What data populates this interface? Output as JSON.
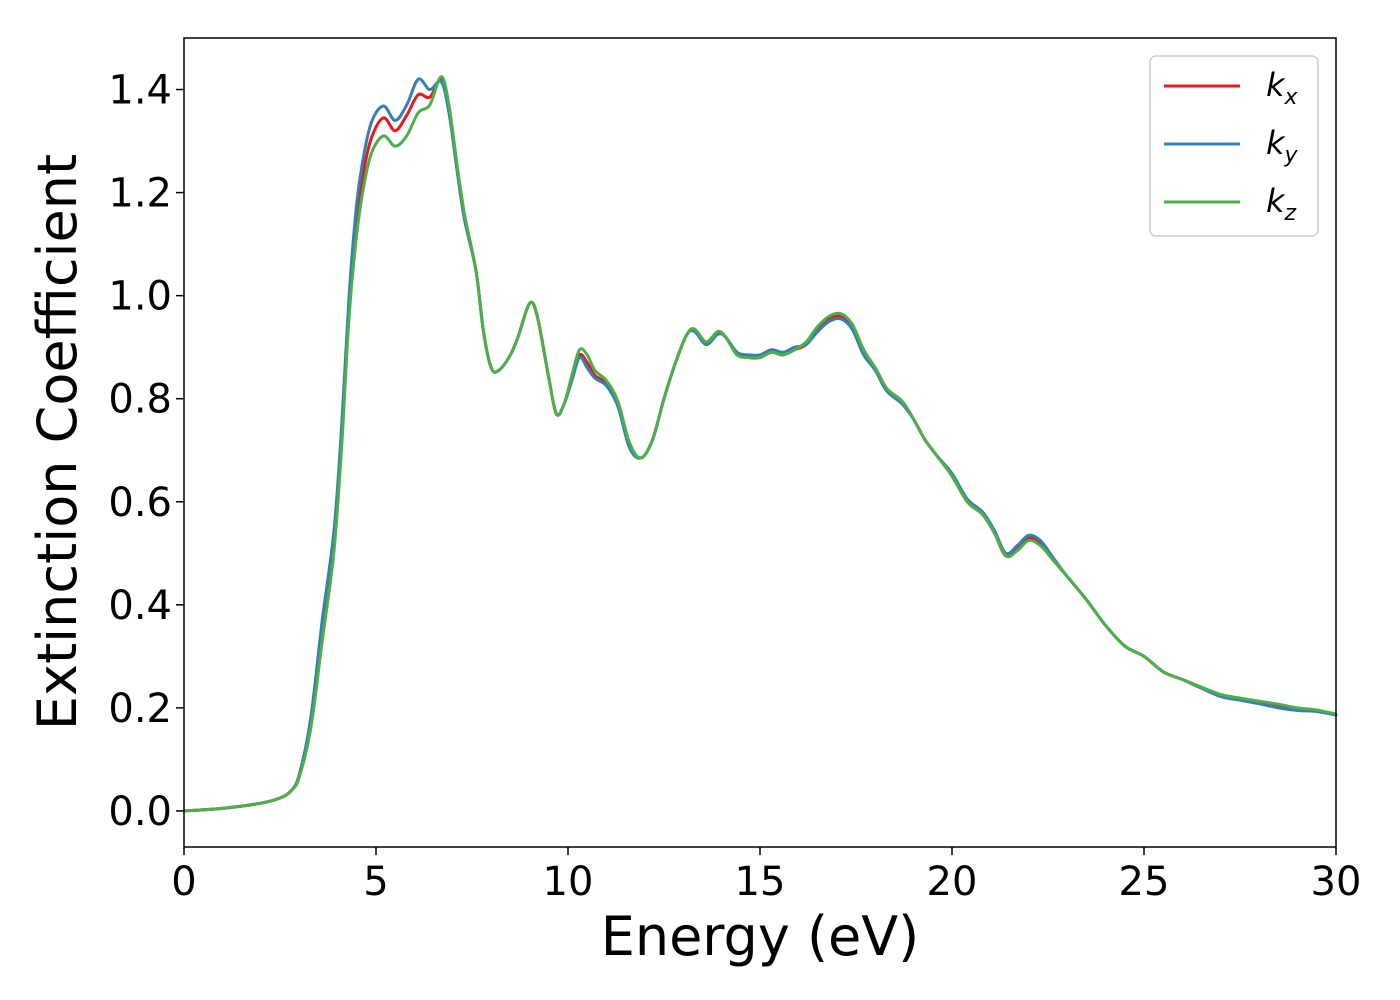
{
  "chart_data": {
    "type": "line",
    "title": "",
    "xlabel": "Energy (eV)",
    "ylabel": "Extinction Coefficient",
    "xlim": [
      0,
      30
    ],
    "ylim": [
      -0.07,
      1.5
    ],
    "xticks": [
      0,
      5,
      10,
      15,
      20,
      25,
      30
    ],
    "xtick_labels": [
      "0",
      "5",
      "10",
      "15",
      "20",
      "25",
      "30"
    ],
    "yticks": [
      0.0,
      0.2,
      0.4,
      0.6,
      0.8,
      1.0,
      1.2,
      1.4
    ],
    "ytick_labels": [
      "0.0",
      "0.2",
      "0.4",
      "0.6",
      "0.8",
      "1.0",
      "1.2",
      "1.4"
    ],
    "grid": false,
    "legend_position": "top-right",
    "series": [
      {
        "name": "k_x",
        "label_base": "k",
        "label_sub": "x",
        "color": "#e41a1c",
        "points": [
          [
            0,
            0
          ],
          [
            1,
            0.005
          ],
          [
            2,
            0.015
          ],
          [
            2.5,
            0.025
          ],
          [
            2.8,
            0.04
          ],
          [
            3.0,
            0.07
          ],
          [
            3.3,
            0.17
          ],
          [
            3.6,
            0.35
          ],
          [
            3.9,
            0.52
          ],
          [
            4.1,
            0.72
          ],
          [
            4.3,
            0.98
          ],
          [
            4.5,
            1.15
          ],
          [
            4.7,
            1.25
          ],
          [
            4.9,
            1.31
          ],
          [
            5.2,
            1.345
          ],
          [
            5.5,
            1.32
          ],
          [
            5.8,
            1.35
          ],
          [
            6.1,
            1.39
          ],
          [
            6.4,
            1.385
          ],
          [
            6.7,
            1.42
          ],
          [
            6.9,
            1.36
          ],
          [
            7.1,
            1.25
          ],
          [
            7.3,
            1.15
          ],
          [
            7.6,
            1.05
          ],
          [
            7.8,
            0.93
          ],
          [
            8.0,
            0.86
          ],
          [
            8.2,
            0.855
          ],
          [
            8.5,
            0.885
          ],
          [
            8.7,
            0.92
          ],
          [
            9.0,
            0.985
          ],
          [
            9.2,
            0.96
          ],
          [
            9.5,
            0.84
          ],
          [
            9.7,
            0.77
          ],
          [
            9.9,
            0.79
          ],
          [
            10.1,
            0.84
          ],
          [
            10.3,
            0.885
          ],
          [
            10.5,
            0.87
          ],
          [
            10.7,
            0.845
          ],
          [
            11.0,
            0.83
          ],
          [
            11.3,
            0.79
          ],
          [
            11.6,
            0.71
          ],
          [
            11.9,
            0.685
          ],
          [
            12.2,
            0.72
          ],
          [
            12.5,
            0.8
          ],
          [
            12.8,
            0.87
          ],
          [
            13.1,
            0.925
          ],
          [
            13.3,
            0.93
          ],
          [
            13.6,
            0.91
          ],
          [
            13.9,
            0.93
          ],
          [
            14.1,
            0.92
          ],
          [
            14.4,
            0.89
          ],
          [
            14.7,
            0.88
          ],
          [
            15.0,
            0.88
          ],
          [
            15.3,
            0.89
          ],
          [
            15.6,
            0.885
          ],
          [
            15.9,
            0.895
          ],
          [
            16.2,
            0.905
          ],
          [
            16.5,
            0.935
          ],
          [
            16.8,
            0.955
          ],
          [
            17.1,
            0.96
          ],
          [
            17.4,
            0.94
          ],
          [
            17.7,
            0.89
          ],
          [
            18.0,
            0.86
          ],
          [
            18.3,
            0.82
          ],
          [
            18.7,
            0.795
          ],
          [
            19.0,
            0.76
          ],
          [
            19.3,
            0.72
          ],
          [
            19.6,
            0.69
          ],
          [
            20.0,
            0.65
          ],
          [
            20.4,
            0.6
          ],
          [
            20.8,
            0.575
          ],
          [
            21.1,
            0.54
          ],
          [
            21.4,
            0.495
          ],
          [
            21.7,
            0.51
          ],
          [
            22.0,
            0.53
          ],
          [
            22.3,
            0.52
          ],
          [
            22.6,
            0.49
          ],
          [
            23.0,
            0.455
          ],
          [
            23.5,
            0.41
          ],
          [
            24.0,
            0.36
          ],
          [
            24.5,
            0.32
          ],
          [
            25.0,
            0.3
          ],
          [
            25.5,
            0.27
          ],
          [
            26.0,
            0.255
          ],
          [
            26.5,
            0.24
          ],
          [
            27.0,
            0.225
          ],
          [
            27.5,
            0.218
          ],
          [
            28.0,
            0.212
          ],
          [
            28.5,
            0.205
          ],
          [
            29.0,
            0.198
          ],
          [
            29.5,
            0.195
          ],
          [
            30.0,
            0.187
          ]
        ]
      },
      {
        "name": "k_y",
        "label_base": "k",
        "label_sub": "y",
        "color": "#377eb8",
        "points": [
          [
            0,
            0
          ],
          [
            1,
            0.005
          ],
          [
            2,
            0.015
          ],
          [
            2.5,
            0.025
          ],
          [
            2.8,
            0.04
          ],
          [
            3.0,
            0.07
          ],
          [
            3.3,
            0.18
          ],
          [
            3.6,
            0.37
          ],
          [
            3.9,
            0.54
          ],
          [
            4.1,
            0.74
          ],
          [
            4.3,
            1.0
          ],
          [
            4.5,
            1.18
          ],
          [
            4.7,
            1.28
          ],
          [
            4.9,
            1.34
          ],
          [
            5.2,
            1.368
          ],
          [
            5.5,
            1.34
          ],
          [
            5.8,
            1.37
          ],
          [
            6.1,
            1.42
          ],
          [
            6.4,
            1.4
          ],
          [
            6.7,
            1.415
          ],
          [
            6.9,
            1.355
          ],
          [
            7.1,
            1.25
          ],
          [
            7.3,
            1.15
          ],
          [
            7.6,
            1.05
          ],
          [
            7.8,
            0.93
          ],
          [
            8.0,
            0.86
          ],
          [
            8.2,
            0.855
          ],
          [
            8.5,
            0.885
          ],
          [
            8.7,
            0.92
          ],
          [
            9.0,
            0.985
          ],
          [
            9.2,
            0.96
          ],
          [
            9.5,
            0.84
          ],
          [
            9.7,
            0.77
          ],
          [
            9.9,
            0.79
          ],
          [
            10.1,
            0.835
          ],
          [
            10.3,
            0.88
          ],
          [
            10.5,
            0.86
          ],
          [
            10.7,
            0.84
          ],
          [
            11.0,
            0.825
          ],
          [
            11.3,
            0.785
          ],
          [
            11.6,
            0.705
          ],
          [
            11.9,
            0.685
          ],
          [
            12.2,
            0.72
          ],
          [
            12.5,
            0.8
          ],
          [
            12.8,
            0.87
          ],
          [
            13.1,
            0.925
          ],
          [
            13.3,
            0.93
          ],
          [
            13.6,
            0.905
          ],
          [
            13.9,
            0.925
          ],
          [
            14.1,
            0.92
          ],
          [
            14.4,
            0.89
          ],
          [
            14.7,
            0.885
          ],
          [
            15.0,
            0.885
          ],
          [
            15.3,
            0.895
          ],
          [
            15.6,
            0.89
          ],
          [
            15.9,
            0.9
          ],
          [
            16.2,
            0.905
          ],
          [
            16.5,
            0.93
          ],
          [
            16.8,
            0.95
          ],
          [
            17.1,
            0.955
          ],
          [
            17.4,
            0.935
          ],
          [
            17.7,
            0.885
          ],
          [
            18.0,
            0.855
          ],
          [
            18.3,
            0.815
          ],
          [
            18.7,
            0.79
          ],
          [
            19.0,
            0.76
          ],
          [
            19.3,
            0.72
          ],
          [
            19.6,
            0.69
          ],
          [
            20.0,
            0.655
          ],
          [
            20.4,
            0.605
          ],
          [
            20.8,
            0.58
          ],
          [
            21.1,
            0.545
          ],
          [
            21.4,
            0.5
          ],
          [
            21.7,
            0.515
          ],
          [
            22.0,
            0.535
          ],
          [
            22.3,
            0.525
          ],
          [
            22.6,
            0.495
          ],
          [
            23.0,
            0.455
          ],
          [
            23.5,
            0.41
          ],
          [
            24.0,
            0.36
          ],
          [
            24.5,
            0.32
          ],
          [
            25.0,
            0.3
          ],
          [
            25.5,
            0.27
          ],
          [
            26.0,
            0.255
          ],
          [
            26.5,
            0.238
          ],
          [
            27.0,
            0.222
          ],
          [
            27.5,
            0.215
          ],
          [
            28.0,
            0.208
          ],
          [
            28.5,
            0.2
          ],
          [
            29.0,
            0.195
          ],
          [
            29.5,
            0.193
          ],
          [
            30.0,
            0.186
          ]
        ]
      },
      {
        "name": "k_z",
        "label_base": "k",
        "label_sub": "z",
        "color": "#4daf4a",
        "points": [
          [
            0,
            0
          ],
          [
            1,
            0.005
          ],
          [
            2,
            0.015
          ],
          [
            2.5,
            0.025
          ],
          [
            2.8,
            0.04
          ],
          [
            3.0,
            0.065
          ],
          [
            3.3,
            0.16
          ],
          [
            3.6,
            0.33
          ],
          [
            3.9,
            0.5
          ],
          [
            4.1,
            0.7
          ],
          [
            4.3,
            0.96
          ],
          [
            4.5,
            1.12
          ],
          [
            4.7,
            1.22
          ],
          [
            4.9,
            1.28
          ],
          [
            5.2,
            1.31
          ],
          [
            5.5,
            1.29
          ],
          [
            5.8,
            1.31
          ],
          [
            6.1,
            1.355
          ],
          [
            6.4,
            1.37
          ],
          [
            6.7,
            1.425
          ],
          [
            6.9,
            1.37
          ],
          [
            7.1,
            1.26
          ],
          [
            7.3,
            1.16
          ],
          [
            7.6,
            1.05
          ],
          [
            7.8,
            0.93
          ],
          [
            8.0,
            0.86
          ],
          [
            8.2,
            0.855
          ],
          [
            8.5,
            0.885
          ],
          [
            8.7,
            0.92
          ],
          [
            9.0,
            0.985
          ],
          [
            9.2,
            0.96
          ],
          [
            9.5,
            0.84
          ],
          [
            9.7,
            0.77
          ],
          [
            9.9,
            0.79
          ],
          [
            10.1,
            0.845
          ],
          [
            10.3,
            0.895
          ],
          [
            10.5,
            0.885
          ],
          [
            10.7,
            0.855
          ],
          [
            11.0,
            0.835
          ],
          [
            11.3,
            0.795
          ],
          [
            11.6,
            0.715
          ],
          [
            11.9,
            0.685
          ],
          [
            12.2,
            0.72
          ],
          [
            12.5,
            0.8
          ],
          [
            12.8,
            0.87
          ],
          [
            13.1,
            0.925
          ],
          [
            13.3,
            0.935
          ],
          [
            13.6,
            0.91
          ],
          [
            13.9,
            0.93
          ],
          [
            14.1,
            0.92
          ],
          [
            14.4,
            0.885
          ],
          [
            14.7,
            0.88
          ],
          [
            15.0,
            0.88
          ],
          [
            15.3,
            0.89
          ],
          [
            15.6,
            0.885
          ],
          [
            15.9,
            0.895
          ],
          [
            16.2,
            0.91
          ],
          [
            16.5,
            0.94
          ],
          [
            16.8,
            0.96
          ],
          [
            17.1,
            0.965
          ],
          [
            17.4,
            0.945
          ],
          [
            17.7,
            0.895
          ],
          [
            18.0,
            0.86
          ],
          [
            18.3,
            0.82
          ],
          [
            18.7,
            0.795
          ],
          [
            19.0,
            0.76
          ],
          [
            19.3,
            0.72
          ],
          [
            19.6,
            0.69
          ],
          [
            20.0,
            0.65
          ],
          [
            20.4,
            0.6
          ],
          [
            20.8,
            0.575
          ],
          [
            21.1,
            0.54
          ],
          [
            21.4,
            0.495
          ],
          [
            21.7,
            0.505
          ],
          [
            22.0,
            0.525
          ],
          [
            22.3,
            0.515
          ],
          [
            22.6,
            0.49
          ],
          [
            23.0,
            0.455
          ],
          [
            23.5,
            0.41
          ],
          [
            24.0,
            0.36
          ],
          [
            24.5,
            0.32
          ],
          [
            25.0,
            0.3
          ],
          [
            25.5,
            0.27
          ],
          [
            26.0,
            0.255
          ],
          [
            26.5,
            0.24
          ],
          [
            27.0,
            0.226
          ],
          [
            27.5,
            0.219
          ],
          [
            28.0,
            0.213
          ],
          [
            28.5,
            0.207
          ],
          [
            29.0,
            0.2
          ],
          [
            29.5,
            0.196
          ],
          [
            30.0,
            0.188
          ]
        ]
      }
    ]
  }
}
